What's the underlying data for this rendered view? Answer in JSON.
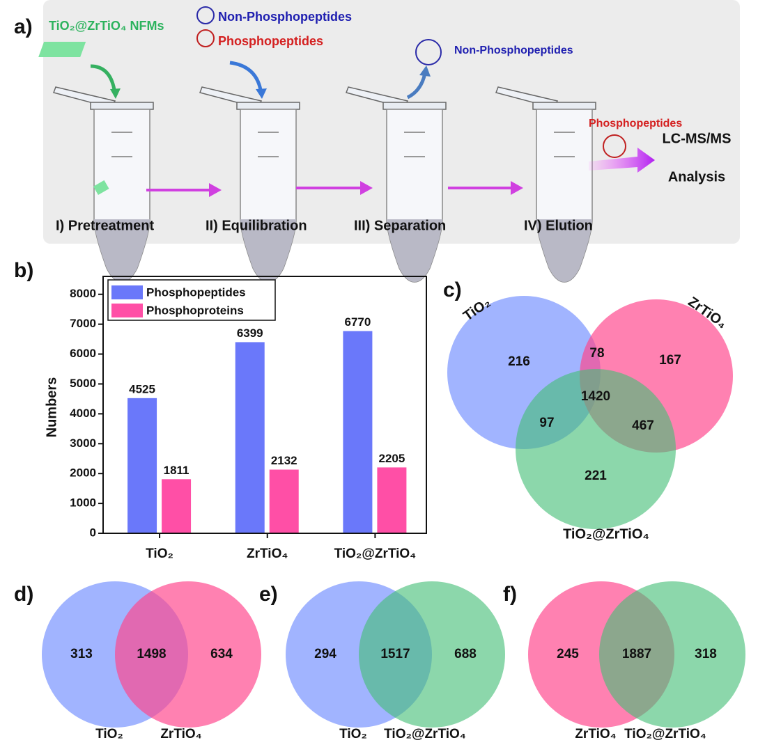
{
  "panel_labels": [
    "a)",
    "b)",
    "c)",
    "d)",
    "e)",
    "f)"
  ],
  "scheme": {
    "material": "TiO₂@ZrTiO₄ NFMs",
    "legend": [
      "Non-Phosphopeptides",
      "Phosphopeptides"
    ],
    "released": "Non-Phosphopeptides",
    "eluted": "Phosphopeptides",
    "output": [
      "LC-MS/MS",
      "Analysis"
    ],
    "steps": [
      "I) Pretreatment",
      "II) Equilibration",
      "III) Separation",
      "IV) Elution"
    ]
  },
  "chart_data": {
    "type": "bar",
    "ylabel": "Numbers",
    "categories": [
      "TiO₂",
      "ZrTiO₄",
      "TiO₂@ZrTiO₄"
    ],
    "series": [
      {
        "name": "Phosphopeptides",
        "color": "#6a78fa",
        "values": [
          4525,
          6399,
          6770
        ]
      },
      {
        "name": "Phosphoproteins",
        "color": "#ff4fa6",
        "values": [
          1811,
          2132,
          2205
        ]
      }
    ],
    "ylim": [
      0,
      8600
    ],
    "yticks": [
      0,
      1000,
      2000,
      3000,
      4000,
      5000,
      6000,
      7000,
      8000
    ],
    "legend": "upper left"
  },
  "venn3": {
    "sets": [
      "TiO₂",
      "ZrTiO₄",
      "TiO₂@ZrTiO₄"
    ],
    "values": [
      216,
      167,
      221,
      78,
      97,
      467,
      1420
    ]
  },
  "venn2": [
    {
      "sets": [
        "TiO₂",
        "ZrTiO₄"
      ],
      "values": [
        313,
        1498,
        634
      ]
    },
    {
      "sets": [
        "TiO₂",
        "TiO₂@ZrTiO₄"
      ],
      "values": [
        294,
        1517,
        688
      ]
    },
    {
      "sets": [
        "ZrTiO₄",
        "TiO₂@ZrTiO₄"
      ],
      "values": [
        245,
        1887,
        318
      ]
    }
  ]
}
